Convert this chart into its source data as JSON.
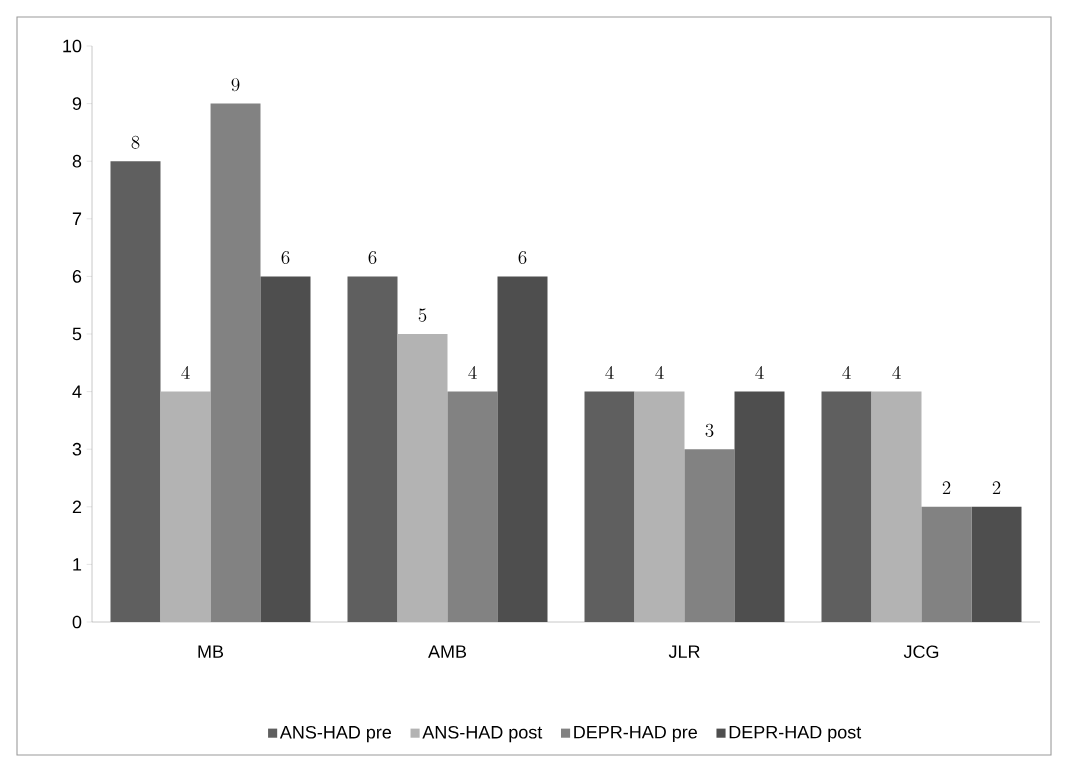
{
  "chart_data": {
    "type": "bar",
    "categories": [
      "MB",
      "AMB",
      "JLR",
      "JCG"
    ],
    "series": [
      {
        "name": "ANS-HAD pre",
        "color": "#5f5f5f",
        "values": [
          8,
          6,
          4,
          4
        ]
      },
      {
        "name": "ANS-HAD post",
        "color": "#b3b3b3",
        "values": [
          4,
          5,
          4,
          4
        ]
      },
      {
        "name": "DEPR-HAD pre",
        "color": "#828282",
        "values": [
          9,
          4,
          3,
          2
        ]
      },
      {
        "name": "DEPR-HAD post",
        "color": "#4e4e4e",
        "values": [
          6,
          6,
          4,
          2
        ]
      }
    ],
    "ylim": [
      0,
      10
    ],
    "yticks": [
      0,
      1,
      2,
      3,
      4,
      5,
      6,
      7,
      8,
      9,
      10
    ],
    "data_labels": true,
    "legend": "bottom",
    "grid": false
  }
}
